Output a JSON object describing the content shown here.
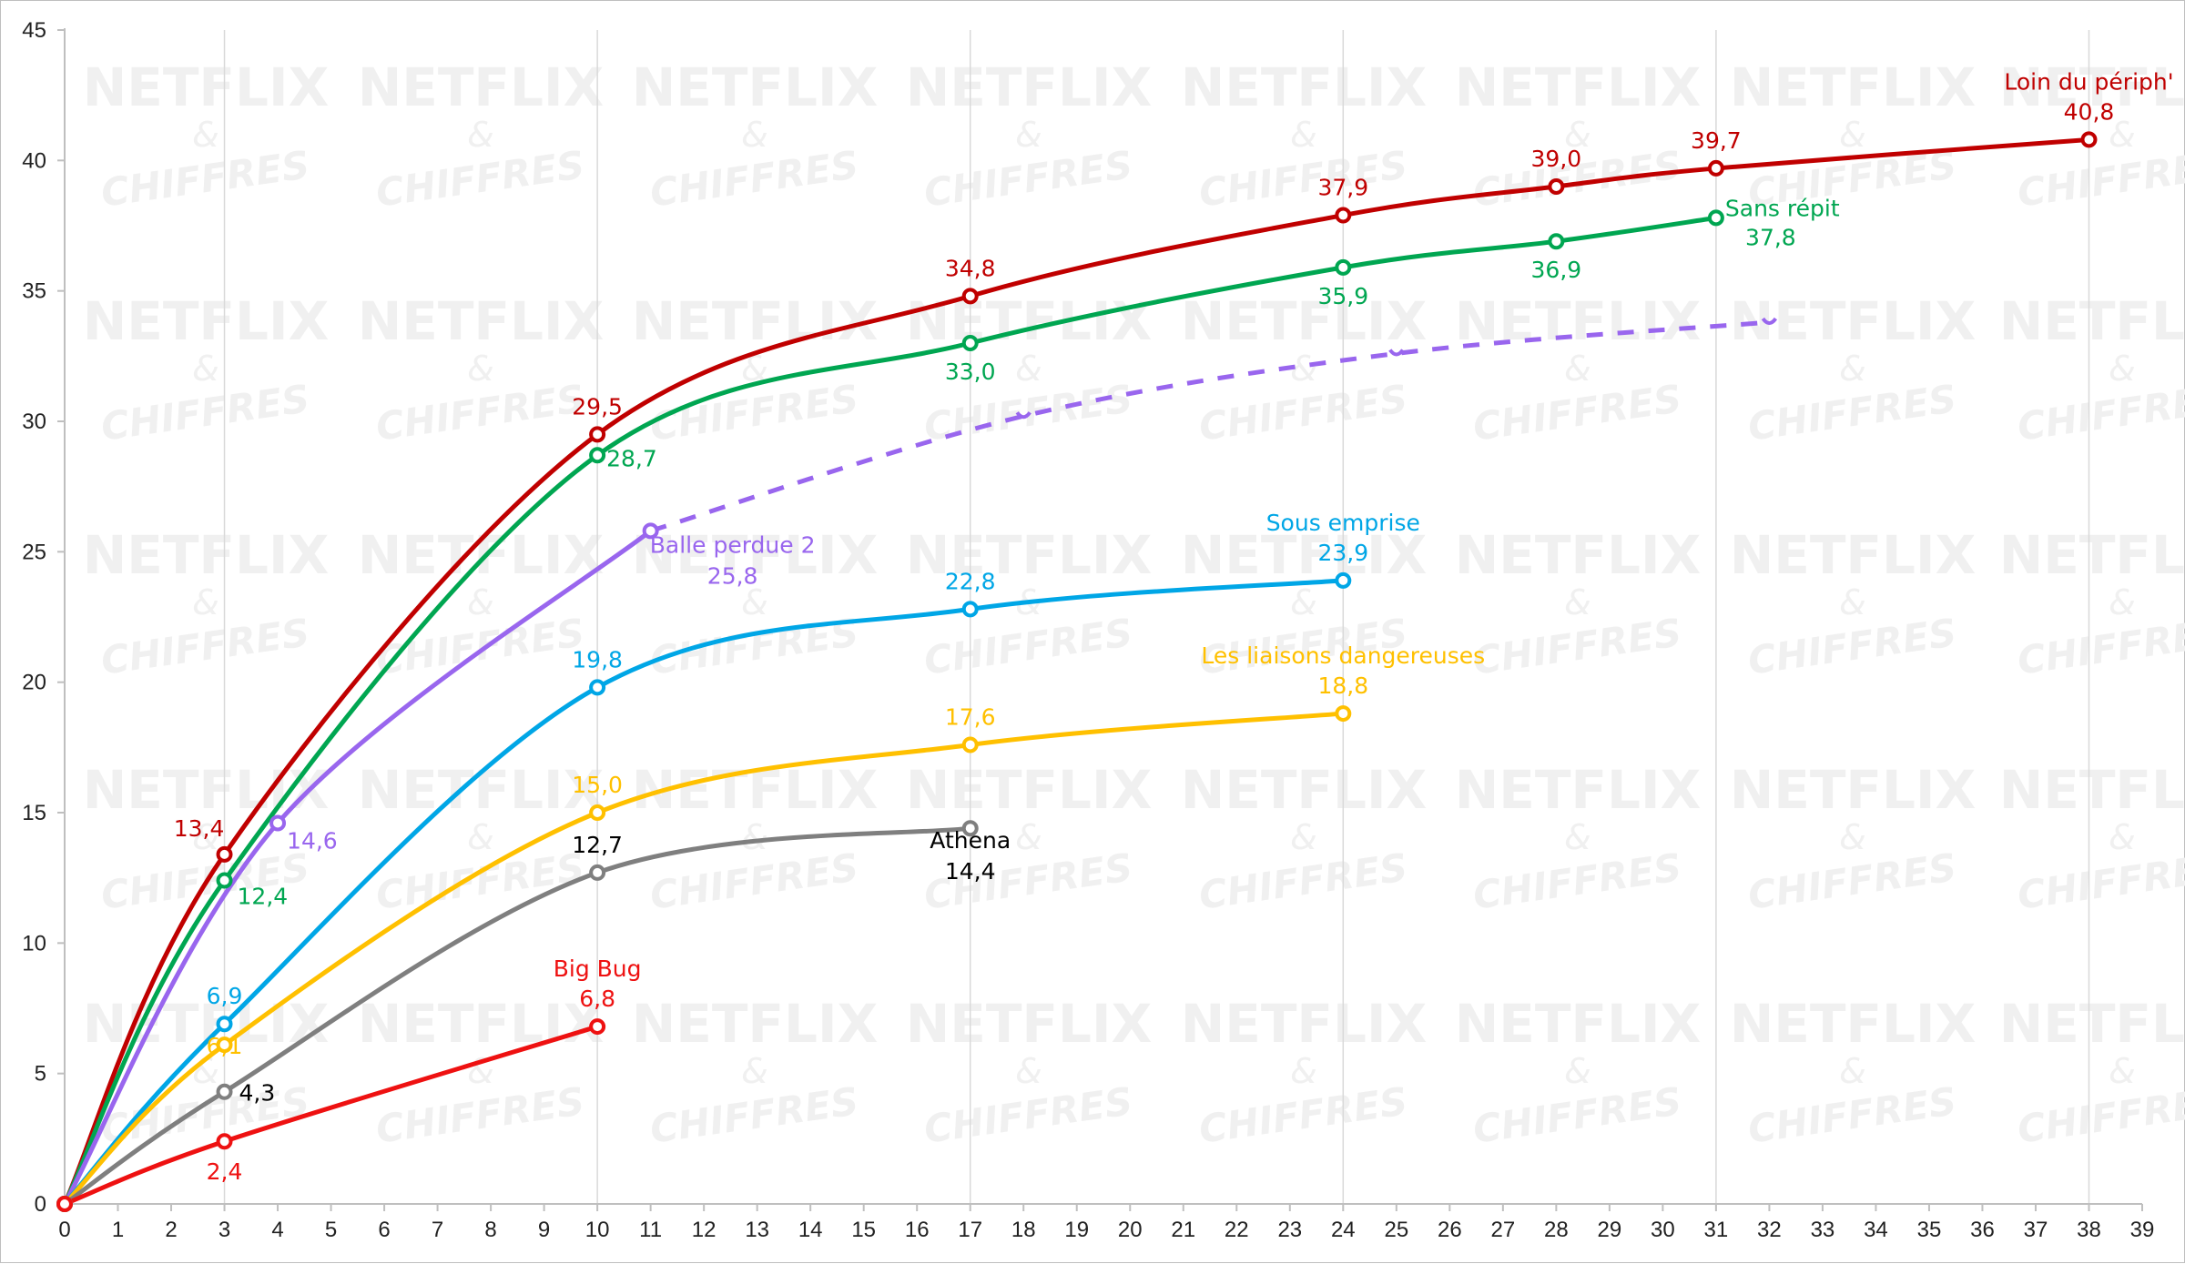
{
  "chart_data": {
    "type": "line",
    "title": "",
    "xlabel": "",
    "ylabel": "",
    "xlim": [
      0,
      39
    ],
    "ylim": [
      0,
      45
    ],
    "x_ticks": [
      0,
      1,
      2,
      3,
      4,
      5,
      6,
      7,
      8,
      9,
      10,
      11,
      12,
      13,
      14,
      15,
      16,
      17,
      18,
      19,
      20,
      21,
      22,
      23,
      24,
      25,
      26,
      27,
      28,
      29,
      30,
      31,
      32,
      33,
      34,
      35,
      36,
      37,
      38,
      39
    ],
    "y_ticks": [
      0,
      5,
      10,
      15,
      20,
      25,
      30,
      35,
      40,
      45
    ],
    "grid": {
      "x_every": 7,
      "x_start": 3,
      "y": false
    },
    "watermark": {
      "line1": "NETFLIX",
      "line2": "&",
      "line3": "CHIFFRES"
    },
    "series": [
      {
        "name": "Loin du périph'",
        "color": "#c00000",
        "points": [
          [
            0,
            0
          ],
          [
            3,
            13.4
          ],
          [
            10,
            29.5
          ],
          [
            17,
            34.8
          ],
          [
            24,
            37.9
          ],
          [
            28,
            39.0
          ],
          [
            31,
            39.7
          ],
          [
            38,
            40.8
          ]
        ],
        "labels": [
          "13,4",
          "29,5",
          "34,8",
          "37,9",
          "39,0",
          "39,7",
          "40,8"
        ]
      },
      {
        "name": "Sans répit",
        "color": "#00a651",
        "points": [
          [
            0,
            0
          ],
          [
            3,
            12.4
          ],
          [
            10,
            28.7
          ],
          [
            17,
            33.0
          ],
          [
            24,
            35.9
          ],
          [
            28,
            36.9
          ],
          [
            31,
            37.8
          ]
        ],
        "labels": [
          "12,4",
          "28,7",
          "33,0",
          "35,9",
          "36,9",
          "37,8"
        ]
      },
      {
        "name": "Balle perdue 2",
        "color": "#9966ee",
        "points": [
          [
            0,
            0
          ],
          [
            4,
            14.6
          ],
          [
            11,
            25.8
          ]
        ],
        "labels": [
          "14,6",
          "25,8"
        ],
        "projection": [
          [
            11,
            25.8
          ],
          [
            18,
            30.2
          ],
          [
            25,
            32.6
          ],
          [
            32,
            33.8
          ]
        ]
      },
      {
        "name": "Sous emprise",
        "color": "#00a6e6",
        "points": [
          [
            0,
            0
          ],
          [
            3,
            6.9
          ],
          [
            10,
            19.8
          ],
          [
            17,
            22.8
          ],
          [
            24,
            23.9
          ]
        ],
        "labels": [
          "6,9",
          "19,8",
          "22,8",
          "23,9"
        ]
      },
      {
        "name": "Les liaisons dangereuses",
        "color": "#ffc000",
        "points": [
          [
            0,
            0
          ],
          [
            3,
            6.1
          ],
          [
            10,
            15.0
          ],
          [
            17,
            17.6
          ],
          [
            24,
            18.8
          ]
        ],
        "labels": [
          "6,1",
          "15,0",
          "17,6",
          "18,8"
        ]
      },
      {
        "name": "Athena",
        "color": "#7f7f7f",
        "points": [
          [
            0,
            0
          ],
          [
            3,
            4.3
          ],
          [
            10,
            12.7
          ],
          [
            17,
            14.4
          ]
        ],
        "labels": [
          "4,3",
          "12,7",
          "14,4"
        ]
      },
      {
        "name": "Big Bug",
        "color": "#ee1111",
        "points": [
          [
            0,
            0
          ],
          [
            3,
            2.4
          ],
          [
            10,
            6.8
          ]
        ],
        "labels": [
          "2,4",
          "6,8"
        ]
      }
    ]
  }
}
